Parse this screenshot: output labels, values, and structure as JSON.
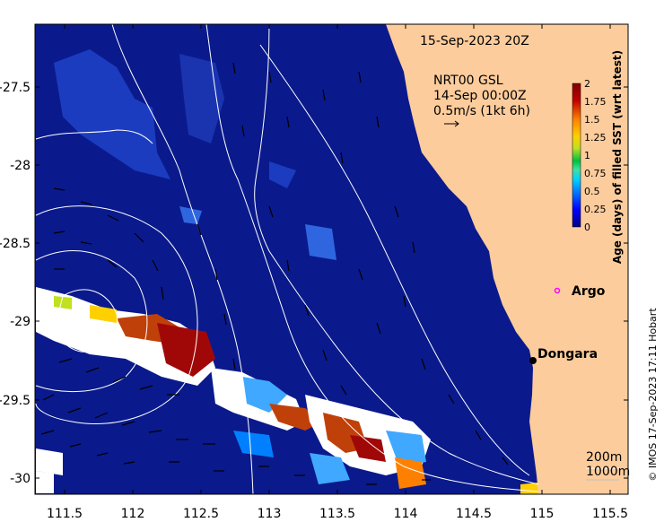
{
  "map": {
    "date_label": "15-Sep-2023 20Z",
    "current_source": "NRT00 GSL",
    "current_date": "14-Sep 00:00Z",
    "current_scale": "0.5m/s (1kt 6h)",
    "x_ticks": [
      "111.5",
      "112",
      "112.5",
      "113",
      "113.5",
      "114",
      "114.5",
      "115",
      "115.5"
    ],
    "y_ticks": [
      "-27.5",
      "-28",
      "-28.5",
      "-29",
      "-29.5",
      "-30"
    ],
    "places": [
      {
        "name": "Argo",
        "marker": "magenta-circle"
      },
      {
        "name": "Dongara",
        "marker": "black-dot"
      }
    ],
    "contours": [
      "200m",
      "1000m"
    ],
    "credit": "© IMOS 17-Sep-2023 17:11 Hobart",
    "colors": {
      "ocean": "#0a1a8c",
      "land": "#fccc9c",
      "cloud": "#ffffff",
      "current_arrow": "#000000",
      "contour_line": "#ffffff"
    }
  },
  "colorbar": {
    "label": "Age (days) of filled SST (wrt latest)",
    "ticks": [
      "2",
      "1.75",
      "1.5",
      "1.25",
      "1",
      "0.75",
      "0.5",
      "0.25",
      "0"
    ],
    "range": [
      0,
      2
    ],
    "colors": [
      "#00007f",
      "#0000ff",
      "#0080ff",
      "#00d0ff",
      "#40e0a0",
      "#00c040",
      "#c0e020",
      "#ffd000",
      "#ff8000",
      "#c00000",
      "#800000"
    ]
  }
}
